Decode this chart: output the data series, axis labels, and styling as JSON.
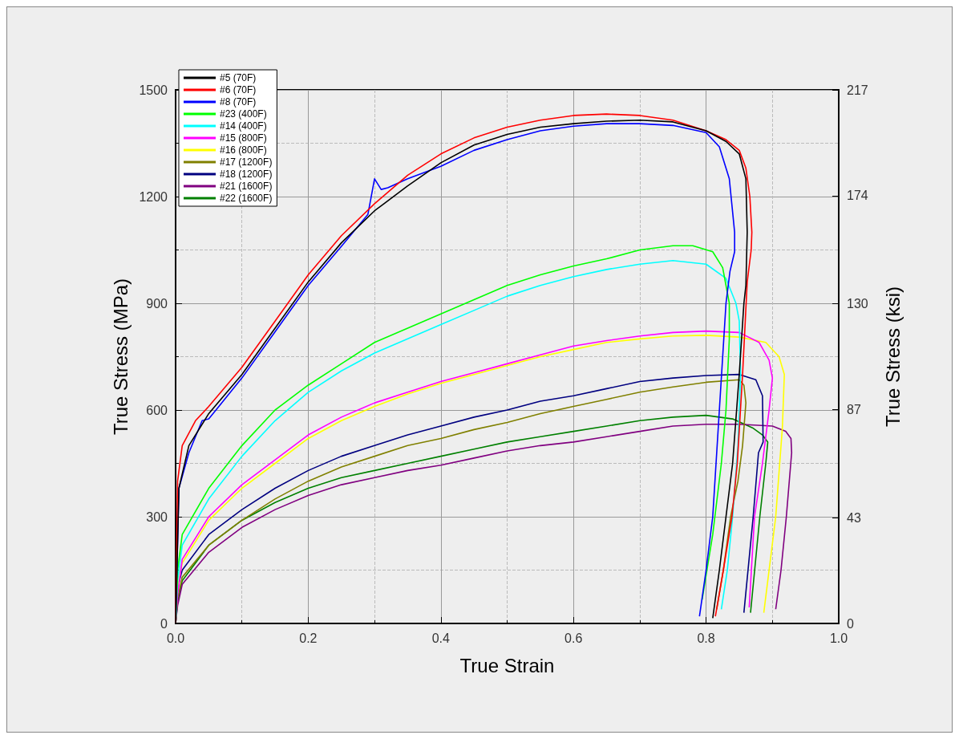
{
  "chart_data": {
    "type": "line",
    "xlabel": "True Strain",
    "ylabel": "True Stress (MPa)",
    "y2label": "True Stress (ksi)",
    "xlim": [
      0,
      1
    ],
    "xticks": [
      {
        "value": 0,
        "label": "0.0"
      },
      {
        "value": 0.2,
        "label": "0.2"
      },
      {
        "value": 0.4,
        "label": "0.4"
      },
      {
        "value": 0.6,
        "label": "0.6"
      },
      {
        "value": 0.8,
        "label": "0.8"
      },
      {
        "value": 1,
        "label": "1.0"
      }
    ],
    "ylim": [
      0,
      1500
    ],
    "yticks": [
      0,
      300,
      600,
      900,
      1200,
      1500
    ],
    "y2lim": [
      0,
      217
    ],
    "y2ticks": [
      0,
      43,
      87,
      130,
      174,
      217
    ],
    "grid": true,
    "legend": "top left",
    "marker": "none",
    "line_style": "solid",
    "series": [
      {
        "name": "#5 (70F)",
        "color": "#000000",
        "x": [
          0,
          0.005,
          0.02,
          0.05,
          0.1,
          0.15,
          0.2,
          0.25,
          0.3,
          0.35,
          0.4,
          0.45,
          0.5,
          0.55,
          0.6,
          0.65,
          0.7,
          0.75,
          0.8,
          0.83,
          0.85,
          0.86,
          0.862,
          0.86,
          0.857,
          0.85,
          0.84,
          0.83,
          0.82,
          0.81
        ],
        "values": [
          0,
          380,
          500,
          590,
          700,
          830,
          960,
          1070,
          1160,
          1230,
          1295,
          1345,
          1375,
          1395,
          1405,
          1412,
          1415,
          1410,
          1385,
          1355,
          1320,
          1250,
          1100,
          950,
          900,
          700,
          450,
          300,
          150,
          15
        ]
      },
      {
        "name": "#6 (70F)",
        "color": "#ff0000",
        "x": [
          0,
          0.003,
          0.01,
          0.03,
          0.05,
          0.1,
          0.15,
          0.2,
          0.25,
          0.3,
          0.35,
          0.4,
          0.45,
          0.5,
          0.55,
          0.6,
          0.65,
          0.7,
          0.75,
          0.8,
          0.83,
          0.85,
          0.86,
          0.866,
          0.869,
          0.868,
          0.862,
          0.855,
          0.847,
          0.839,
          0.826,
          0.814
        ],
        "values": [
          0,
          400,
          500,
          570,
          610,
          720,
          850,
          980,
          1090,
          1180,
          1260,
          1320,
          1365,
          1395,
          1415,
          1428,
          1432,
          1428,
          1415,
          1385,
          1360,
          1330,
          1280,
          1200,
          1100,
          1050,
          960,
          700,
          450,
          300,
          150,
          20
        ]
      },
      {
        "name": "#8 (70F)",
        "color": "#0000ff",
        "x": [
          0,
          0.005,
          0.02,
          0.04,
          0.05,
          0.1,
          0.15,
          0.2,
          0.25,
          0.29,
          0.3,
          0.31,
          0.32,
          0.35,
          0.4,
          0.45,
          0.5,
          0.55,
          0.6,
          0.65,
          0.7,
          0.75,
          0.8,
          0.82,
          0.835,
          0.843,
          0.843,
          0.836,
          0.83,
          0.82,
          0.81,
          0.8,
          0.79
        ],
        "values": [
          0,
          380,
          480,
          570,
          575,
          690,
          820,
          950,
          1060,
          1150,
          1250,
          1220,
          1225,
          1250,
          1285,
          1330,
          1360,
          1385,
          1398,
          1405,
          1405,
          1400,
          1380,
          1340,
          1250,
          1100,
          1045,
          990,
          900,
          600,
          300,
          150,
          20
        ]
      },
      {
        "name": "#23 (400F)",
        "color": "#00ff00",
        "x": [
          0,
          0.003,
          0.01,
          0.05,
          0.1,
          0.15,
          0.2,
          0.25,
          0.3,
          0.35,
          0.4,
          0.45,
          0.5,
          0.55,
          0.6,
          0.65,
          0.7,
          0.75,
          0.78,
          0.81,
          0.825,
          0.835,
          0.835,
          0.83,
          0.823,
          0.81,
          0.794
        ],
        "values": [
          0,
          150,
          250,
          380,
          500,
          600,
          670,
          730,
          790,
          830,
          870,
          910,
          950,
          980,
          1005,
          1025,
          1050,
          1062,
          1062,
          1045,
          1000,
          900,
          800,
          600,
          450,
          250,
          67
        ]
      },
      {
        "name": "#14 (400F)",
        "color": "#00ffff",
        "x": [
          0,
          0.003,
          0.01,
          0.05,
          0.1,
          0.15,
          0.2,
          0.25,
          0.3,
          0.35,
          0.4,
          0.45,
          0.5,
          0.55,
          0.6,
          0.65,
          0.7,
          0.75,
          0.8,
          0.83,
          0.845,
          0.85,
          0.852,
          0.848,
          0.84,
          0.832,
          0.823
        ],
        "values": [
          0,
          120,
          220,
          350,
          470,
          570,
          650,
          710,
          760,
          800,
          840,
          880,
          920,
          950,
          975,
          995,
          1010,
          1020,
          1010,
          970,
          900,
          850,
          700,
          500,
          300,
          150,
          40
        ]
      },
      {
        "name": "#15 (800F)",
        "color": "#ff00ff",
        "x": [
          0,
          0.003,
          0.01,
          0.05,
          0.1,
          0.15,
          0.2,
          0.25,
          0.3,
          0.35,
          0.4,
          0.45,
          0.5,
          0.55,
          0.6,
          0.65,
          0.7,
          0.75,
          0.8,
          0.85,
          0.88,
          0.895,
          0.9,
          0.895,
          0.885,
          0.873,
          0.865
        ],
        "values": [
          0,
          80,
          180,
          300,
          390,
          460,
          530,
          580,
          620,
          650,
          680,
          705,
          730,
          755,
          780,
          795,
          808,
          818,
          822,
          818,
          790,
          740,
          690,
          600,
          450,
          300,
          45
        ]
      },
      {
        "name": "#16 (800F)",
        "color": "#ffff00",
        "x": [
          0,
          0.003,
          0.01,
          0.05,
          0.1,
          0.15,
          0.2,
          0.25,
          0.3,
          0.35,
          0.4,
          0.45,
          0.5,
          0.55,
          0.6,
          0.65,
          0.7,
          0.75,
          0.8,
          0.85,
          0.89,
          0.91,
          0.918,
          0.915,
          0.905,
          0.887
        ],
        "values": [
          0,
          100,
          170,
          290,
          380,
          450,
          520,
          570,
          610,
          645,
          675,
          700,
          725,
          750,
          770,
          790,
          800,
          808,
          810,
          805,
          790,
          750,
          700,
          550,
          300,
          30
        ]
      },
      {
        "name": "#17 (1200F)",
        "color": "#808000",
        "x": [
          0,
          0.003,
          0.01,
          0.05,
          0.1,
          0.15,
          0.2,
          0.25,
          0.3,
          0.35,
          0.4,
          0.45,
          0.5,
          0.55,
          0.6,
          0.65,
          0.7,
          0.75,
          0.8,
          0.85,
          0.857,
          0.86,
          0.855,
          0.848,
          0.837,
          0.826,
          0.816
        ],
        "values": [
          0,
          70,
          130,
          220,
          290,
          350,
          400,
          440,
          470,
          500,
          520,
          545,
          565,
          590,
          610,
          630,
          650,
          665,
          678,
          685,
          670,
          620,
          500,
          400,
          300,
          150,
          40
        ]
      },
      {
        "name": "#18 (1200F)",
        "color": "#000080",
        "x": [
          0,
          0.003,
          0.01,
          0.05,
          0.1,
          0.15,
          0.2,
          0.25,
          0.3,
          0.35,
          0.4,
          0.45,
          0.5,
          0.55,
          0.6,
          0.65,
          0.7,
          0.75,
          0.8,
          0.85,
          0.875,
          0.885,
          0.886,
          0.879,
          0.871,
          0.857
        ],
        "values": [
          0,
          100,
          150,
          250,
          320,
          380,
          430,
          470,
          500,
          530,
          555,
          580,
          600,
          625,
          640,
          660,
          680,
          690,
          697,
          700,
          685,
          640,
          510,
          480,
          300,
          30
        ]
      },
      {
        "name": "#21 (1600F)",
        "color": "#800080",
        "x": [
          0,
          0.003,
          0.01,
          0.05,
          0.1,
          0.15,
          0.2,
          0.25,
          0.3,
          0.35,
          0.4,
          0.45,
          0.5,
          0.55,
          0.6,
          0.65,
          0.7,
          0.75,
          0.8,
          0.85,
          0.9,
          0.92,
          0.928,
          0.929,
          0.921,
          0.913,
          0.905
        ],
        "values": [
          0,
          50,
          110,
          200,
          270,
          320,
          360,
          390,
          410,
          430,
          445,
          465,
          485,
          500,
          510,
          525,
          540,
          555,
          560,
          560,
          555,
          540,
          520,
          480,
          300,
          150,
          40
        ]
      },
      {
        "name": "#22 (1600F)",
        "color": "#008000",
        "x": [
          0,
          0.003,
          0.01,
          0.05,
          0.1,
          0.15,
          0.2,
          0.25,
          0.3,
          0.35,
          0.4,
          0.45,
          0.5,
          0.55,
          0.6,
          0.65,
          0.7,
          0.75,
          0.8,
          0.84,
          0.87,
          0.885,
          0.893,
          0.89,
          0.881,
          0.867
        ],
        "values": [
          0,
          60,
          120,
          220,
          290,
          340,
          380,
          410,
          430,
          450,
          470,
          490,
          510,
          525,
          540,
          555,
          570,
          580,
          585,
          575,
          550,
          530,
          510,
          450,
          300,
          30
        ]
      }
    ]
  }
}
